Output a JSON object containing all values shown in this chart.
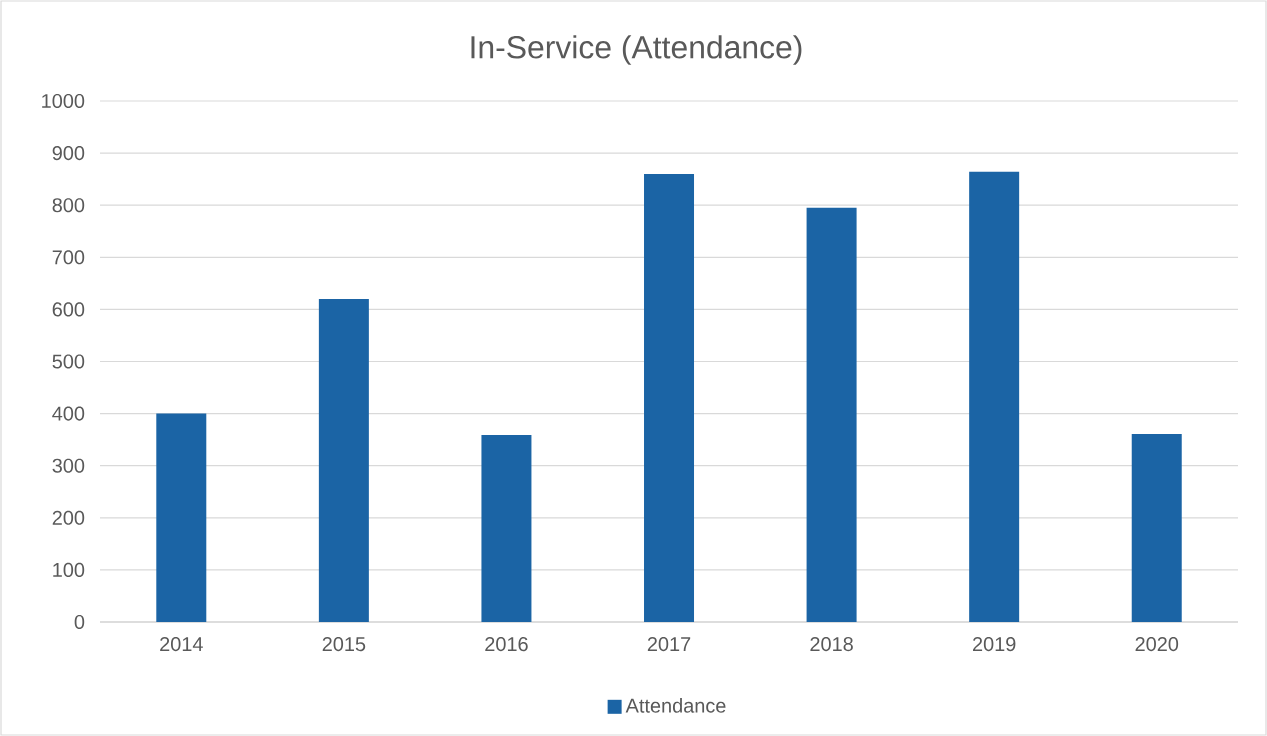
{
  "chart_data": {
    "type": "bar",
    "title": "In-Service (Attendance)",
    "categories": [
      "2014",
      "2015",
      "2016",
      "2017",
      "2018",
      "2019",
      "2020"
    ],
    "series": [
      {
        "name": "Attendance",
        "color": "#1b64a5",
        "values": [
          400,
          620,
          359,
          860,
          795,
          864,
          361
        ]
      }
    ],
    "ylim": [
      0,
      1000
    ],
    "yticks": [
      0,
      100,
      200,
      300,
      400,
      500,
      600,
      700,
      800,
      900,
      1000
    ],
    "grid": "y",
    "legend": "bottom"
  }
}
